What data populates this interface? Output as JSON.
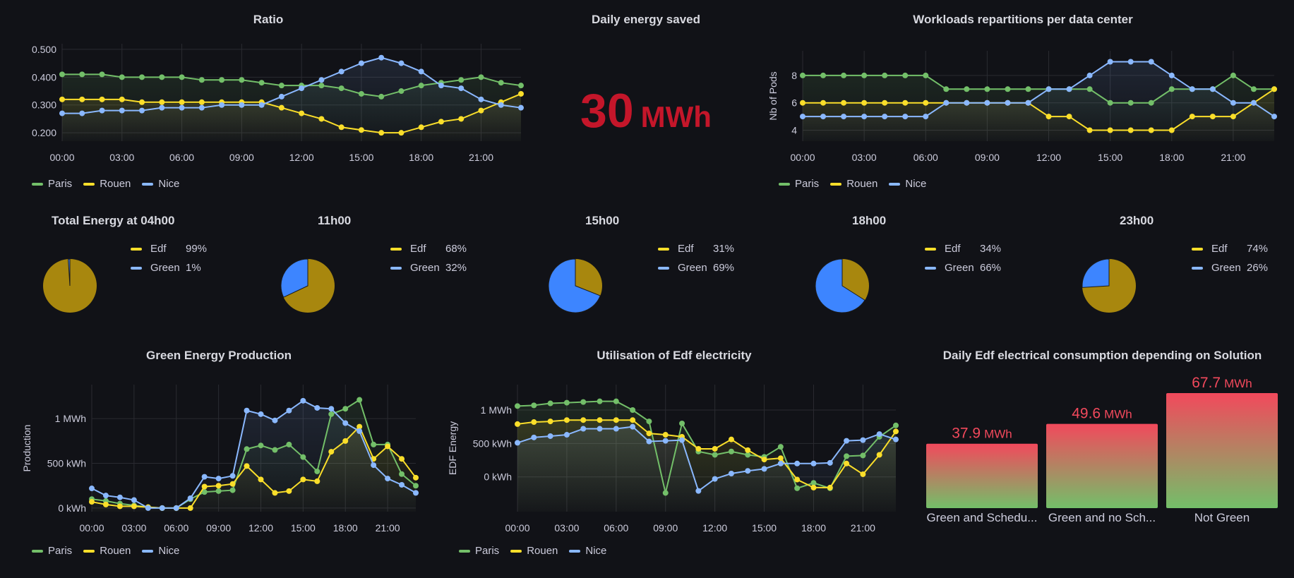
{
  "colors": {
    "paris": "#73bf69",
    "rouen": "#fade2a",
    "nice": "#8ab8ff",
    "edf": "#a8870e",
    "green": "#3d85ff",
    "stat": "#c4162a",
    "bar_top": "#f2495c"
  },
  "ratio_panel": {
    "title": "Ratio",
    "legend": [
      "Paris",
      "Rouen",
      "Nice"
    ],
    "y_ticks": [
      "0.500",
      "0.400",
      "0.300",
      "0.200"
    ],
    "x_ticks": [
      "00:00",
      "03:00",
      "06:00",
      "09:00",
      "12:00",
      "15:00",
      "18:00",
      "21:00"
    ]
  },
  "energy_panel": {
    "title": "Daily energy saved",
    "value": "30",
    "unit": "MWh"
  },
  "workloads_panel": {
    "title": "Workloads repartitions per data center",
    "ylabel": "Nb of Pods",
    "legend": [
      "Paris",
      "Rouen",
      "Nice"
    ],
    "y_ticks": [
      "8",
      "6",
      "4"
    ],
    "x_ticks": [
      "00:00",
      "03:00",
      "06:00",
      "09:00",
      "12:00",
      "15:00",
      "18:00",
      "21:00"
    ]
  },
  "pies": [
    {
      "title": "Total Energy at 04h00",
      "edf_label": "Edf",
      "edf_pct": "99%",
      "green_label": "Green",
      "green_pct": "1%",
      "green_frac": 0.01
    },
    {
      "title": "11h00",
      "edf_label": "Edf",
      "edf_pct": "68%",
      "green_label": "Green",
      "green_pct": "32%",
      "green_frac": 0.32
    },
    {
      "title": "15h00",
      "edf_label": "Edf",
      "edf_pct": "31%",
      "green_label": "Green",
      "green_pct": "69%",
      "green_frac": 0.69
    },
    {
      "title": "18h00",
      "edf_label": "Edf",
      "edf_pct": "34%",
      "green_label": "Green",
      "green_pct": "66%",
      "green_frac": 0.66
    },
    {
      "title": "23h00",
      "edf_label": "Edf",
      "edf_pct": "74%",
      "green_label": "Green",
      "green_pct": "26%",
      "green_frac": 0.26
    }
  ],
  "green_panel": {
    "title": "Green Energy Production",
    "ylabel": "Production",
    "legend": [
      "Paris",
      "Rouen",
      "Nice"
    ],
    "y_ticks": [
      "1 MWh",
      "500 kWh",
      "0 kWh"
    ],
    "x_ticks": [
      "00:00",
      "03:00",
      "06:00",
      "09:00",
      "12:00",
      "15:00",
      "18:00",
      "21:00"
    ]
  },
  "edf_panel": {
    "title": "Utilisation of Edf electricity",
    "ylabel": "EDF Energy",
    "legend": [
      "Paris",
      "Rouen",
      "Nice"
    ],
    "y_ticks": [
      "1 MWh",
      "500 kWh",
      "0 kWh"
    ],
    "x_ticks": [
      "00:00",
      "03:00",
      "06:00",
      "09:00",
      "12:00",
      "15:00",
      "18:00",
      "21:00"
    ]
  },
  "consumption_panel": {
    "title": "Daily Edf electrical consumption depending on Solution",
    "bars": [
      {
        "label": "Green and Schedu...",
        "value": "37.9",
        "unit": "MWh"
      },
      {
        "label": "Green and no Sch...",
        "value": "49.6",
        "unit": "MWh"
      },
      {
        "label": "Not Green",
        "value": "67.7",
        "unit": "MWh"
      }
    ]
  },
  "chart_data": [
    {
      "type": "line",
      "title": "Ratio",
      "x": [
        "00:00",
        "01:00",
        "02:00",
        "03:00",
        "04:00",
        "05:00",
        "06:00",
        "07:00",
        "08:00",
        "09:00",
        "10:00",
        "11:00",
        "12:00",
        "13:00",
        "14:00",
        "15:00",
        "16:00",
        "17:00",
        "18:00",
        "19:00",
        "20:00",
        "21:00",
        "22:00",
        "23:00"
      ],
      "ylim": [
        0.17,
        0.52
      ],
      "series": [
        {
          "name": "Paris",
          "values": [
            0.41,
            0.41,
            0.41,
            0.4,
            0.4,
            0.4,
            0.4,
            0.39,
            0.39,
            0.39,
            0.38,
            0.37,
            0.37,
            0.37,
            0.36,
            0.34,
            0.33,
            0.35,
            0.37,
            0.38,
            0.39,
            0.4,
            0.38,
            0.37
          ]
        },
        {
          "name": "Rouen",
          "values": [
            0.32,
            0.32,
            0.32,
            0.32,
            0.31,
            0.31,
            0.31,
            0.31,
            0.31,
            0.31,
            0.31,
            0.29,
            0.27,
            0.25,
            0.22,
            0.21,
            0.2,
            0.2,
            0.22,
            0.24,
            0.25,
            0.28,
            0.31,
            0.34
          ]
        },
        {
          "name": "Nice",
          "values": [
            0.27,
            0.27,
            0.28,
            0.28,
            0.28,
            0.29,
            0.29,
            0.29,
            0.3,
            0.3,
            0.3,
            0.33,
            0.36,
            0.39,
            0.42,
            0.45,
            0.47,
            0.45,
            0.42,
            0.37,
            0.36,
            0.32,
            0.3,
            0.29
          ]
        }
      ]
    },
    {
      "type": "line",
      "title": "Workloads repartitions per data center",
      "ylabel": "Nb of Pods",
      "x": [
        "00:00",
        "01:00",
        "02:00",
        "03:00",
        "04:00",
        "05:00",
        "06:00",
        "07:00",
        "08:00",
        "09:00",
        "10:00",
        "11:00",
        "12:00",
        "13:00",
        "14:00",
        "15:00",
        "16:00",
        "17:00",
        "18:00",
        "19:00",
        "20:00",
        "21:00",
        "22:00",
        "23:00"
      ],
      "ylim": [
        3.2,
        9.8
      ],
      "series": [
        {
          "name": "Paris",
          "values": [
            8,
            8,
            8,
            8,
            8,
            8,
            8,
            7,
            7,
            7,
            7,
            7,
            7,
            7,
            7,
            6,
            6,
            6,
            7,
            7,
            7,
            8,
            7,
            7
          ]
        },
        {
          "name": "Rouen",
          "values": [
            6,
            6,
            6,
            6,
            6,
            6,
            6,
            6,
            6,
            6,
            6,
            6,
            5,
            5,
            4,
            4,
            4,
            4,
            4,
            5,
            5,
            5,
            6,
            7
          ]
        },
        {
          "name": "Nice",
          "values": [
            5,
            5,
            5,
            5,
            5,
            5,
            5,
            6,
            6,
            6,
            6,
            6,
            7,
            7,
            8,
            9,
            9,
            9,
            8,
            7,
            7,
            6,
            6,
            5
          ]
        }
      ]
    },
    {
      "type": "pie",
      "title": "Total Energy at 04h00 / 11h00 / 15h00 / 18h00 / 23h00",
      "categories": [
        "Edf",
        "Green"
      ],
      "series": [
        {
          "name": "Total Energy at 04h00",
          "values": [
            99,
            1
          ]
        },
        {
          "name": "11h00",
          "values": [
            68,
            32
          ]
        },
        {
          "name": "15h00",
          "values": [
            31,
            69
          ]
        },
        {
          "name": "18h00",
          "values": [
            34,
            66
          ]
        },
        {
          "name": "23h00",
          "values": [
            74,
            26
          ]
        }
      ]
    },
    {
      "type": "line",
      "title": "Green Energy Production",
      "ylabel": "Production",
      "unit": "kWh",
      "x": [
        "00:00",
        "01:00",
        "02:00",
        "03:00",
        "04:00",
        "05:00",
        "06:00",
        "07:00",
        "08:00",
        "09:00",
        "10:00",
        "11:00",
        "12:00",
        "13:00",
        "14:00",
        "15:00",
        "16:00",
        "17:00",
        "18:00",
        "19:00",
        "20:00",
        "21:00",
        "22:00",
        "23:00"
      ],
      "ylim": [
        -40,
        1380
      ],
      "series": [
        {
          "name": "Paris",
          "values": [
            100,
            80,
            50,
            30,
            10,
            0,
            0,
            100,
            180,
            190,
            200,
            660,
            700,
            650,
            710,
            570,
            410,
            1050,
            1110,
            1210,
            710,
            710,
            380,
            250
          ]
        },
        {
          "name": "Rouen",
          "values": [
            70,
            40,
            20,
            20,
            10,
            0,
            0,
            0,
            240,
            250,
            270,
            470,
            320,
            170,
            190,
            320,
            300,
            630,
            750,
            910,
            550,
            690,
            550,
            340
          ]
        },
        {
          "name": "Nice",
          "values": [
            220,
            140,
            120,
            90,
            0,
            0,
            0,
            110,
            350,
            330,
            360,
            1090,
            1050,
            980,
            1090,
            1200,
            1120,
            1110,
            950,
            860,
            480,
            330,
            260,
            170
          ]
        }
      ]
    },
    {
      "type": "line",
      "title": "Utilisation of Edf electricity",
      "ylabel": "EDF Energy",
      "unit": "kWh",
      "x": [
        "00:00",
        "01:00",
        "02:00",
        "03:00",
        "04:00",
        "05:00",
        "06:00",
        "07:00",
        "08:00",
        "09:00",
        "10:00",
        "11:00",
        "12:00",
        "13:00",
        "14:00",
        "15:00",
        "16:00",
        "17:00",
        "18:00",
        "19:00",
        "20:00",
        "21:00",
        "22:00",
        "23:00"
      ],
      "ylim": [
        -520,
        1380
      ],
      "series": [
        {
          "name": "Paris",
          "values": [
            1060,
            1070,
            1100,
            1110,
            1120,
            1130,
            1130,
            1000,
            830,
            -240,
            800,
            380,
            330,
            380,
            330,
            300,
            450,
            -170,
            -90,
            -170,
            310,
            320,
            600,
            770
          ]
        },
        {
          "name": "Rouen",
          "values": [
            790,
            820,
            830,
            850,
            850,
            850,
            850,
            850,
            650,
            630,
            600,
            420,
            420,
            560,
            400,
            260,
            280,
            -40,
            -160,
            -160,
            200,
            40,
            330,
            680
          ]
        },
        {
          "name": "Nice",
          "values": [
            510,
            590,
            610,
            630,
            720,
            720,
            720,
            750,
            530,
            540,
            550,
            -210,
            -30,
            50,
            90,
            120,
            200,
            200,
            200,
            210,
            540,
            550,
            640,
            560
          ]
        }
      ]
    },
    {
      "type": "bar",
      "title": "Daily Edf electrical consumption depending on Solution",
      "categories": [
        "Green and Schedu...",
        "Green and no Sch...",
        "Not Green"
      ],
      "values": [
        37.9,
        49.6,
        67.7
      ],
      "unit": "MWh"
    }
  ]
}
